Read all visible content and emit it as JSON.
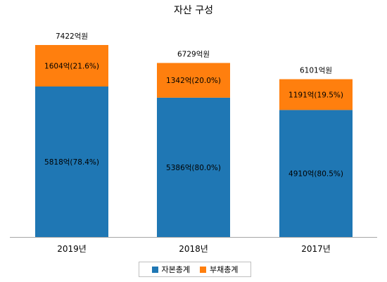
{
  "colors": {
    "equity": "#1f77b4",
    "liabilities": "#ff7f0e",
    "axis": "#a6a6a6"
  },
  "chart_data": {
    "type": "bar",
    "stacked": true,
    "title": "자산 구성",
    "categories": [
      "2019년",
      "2018년",
      "2017년"
    ],
    "series": [
      {
        "name": "자본총계",
        "values": [
          5818,
          5386,
          4910
        ],
        "labels": [
          "5818억(78.4%)",
          "5386억(80.0%)",
          "4910억(80.5%)"
        ]
      },
      {
        "name": "부채총계",
        "values": [
          1604,
          1342,
          1191
        ],
        "labels": [
          "1604억(21.6%)",
          "1342억(20.0%)",
          "1191억(19.5%)"
        ]
      }
    ],
    "totals": [
      "7422억원",
      "6729억원",
      "6101억원"
    ],
    "ylim": [
      0,
      7422
    ],
    "grid": false,
    "legend_position": "bottom"
  }
}
